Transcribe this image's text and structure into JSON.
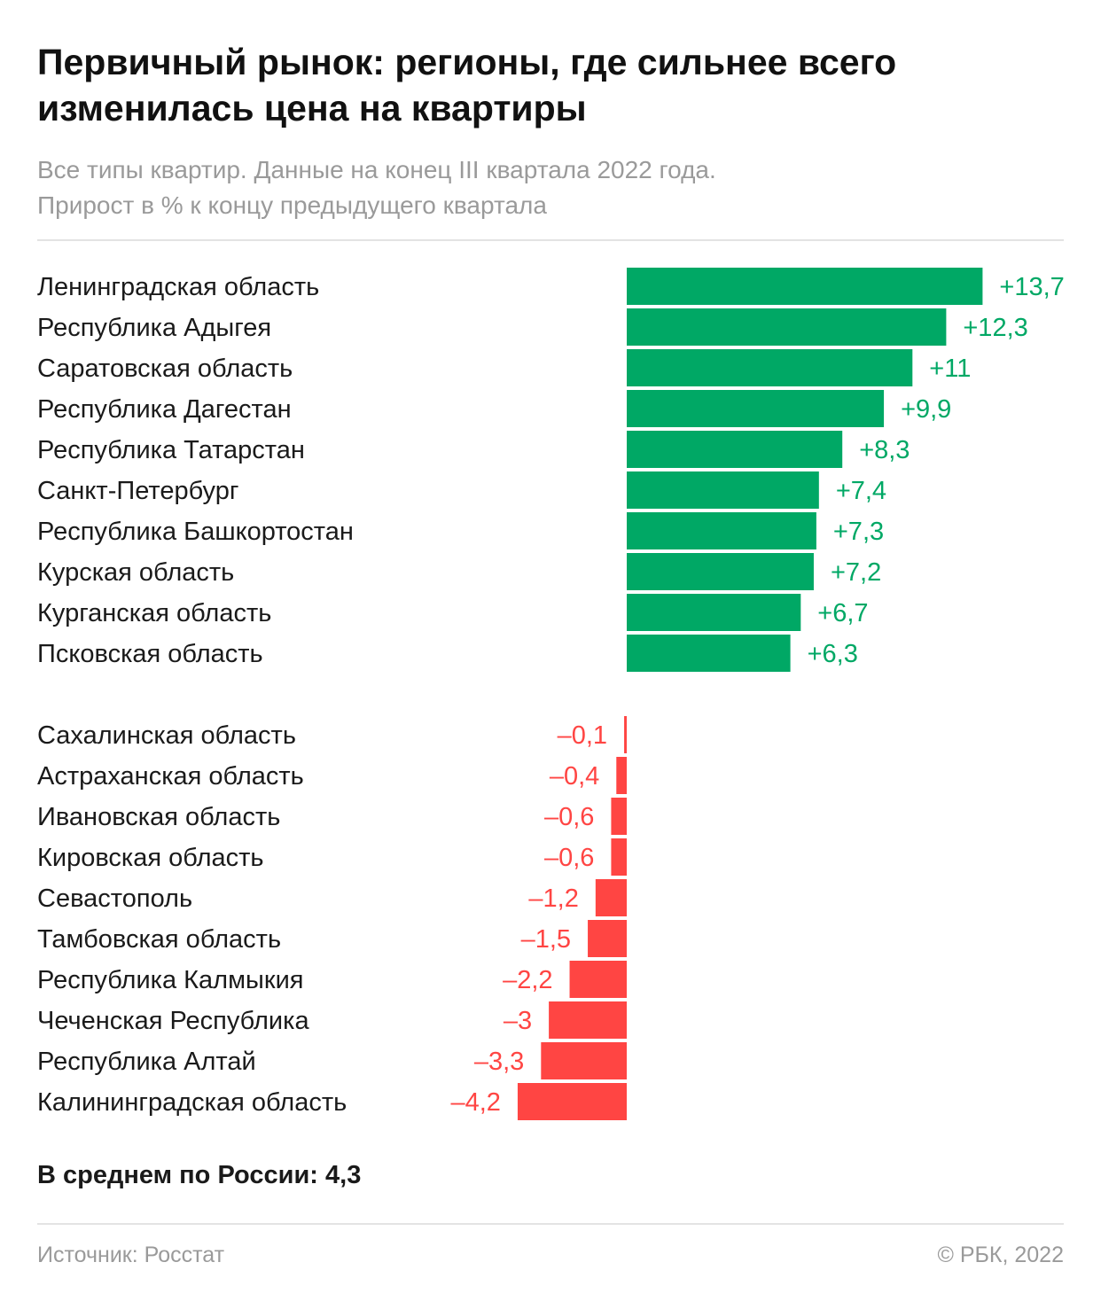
{
  "header": {
    "title": "Первичный рынок: регионы, где сильнее всего изменилась цена на квартиры",
    "subtitle_line1": "Все типы квартир. Данные на конец III квартала 2022 года.",
    "subtitle_line2": "Прирост в % к концу предыдущего квартала"
  },
  "chart_data": {
    "type": "bar",
    "orientation": "horizontal",
    "title": "Первичный рынок: регионы, где сильнее всего изменилась цена на квартиры",
    "subtitle": "Все типы квартир. Данные на конец III квартала 2022 года. Прирост в % к концу предыдущего квартала",
    "colors": {
      "positive": "#00a865",
      "negative": "#ff4543"
    },
    "groups": [
      {
        "categories": [
          "Ленинградская область",
          "Республика Адыгея",
          "Саратовская область",
          "Республика Дагестан",
          "Республика Татарстан",
          "Санкт-Петербург",
          "Республика Башкортостан",
          "Курская область",
          "Курганская область",
          "Псковская область"
        ],
        "values": [
          13.7,
          12.3,
          11,
          9.9,
          8.3,
          7.4,
          7.3,
          7.2,
          6.7,
          6.3
        ],
        "labels": [
          "+13,7",
          "+12,3",
          "+11",
          "+9,9",
          "+8,3",
          "+7,4",
          "+7,3",
          "+7,2",
          "+6,7",
          "+6,3"
        ]
      },
      {
        "categories": [
          "Сахалинская область",
          "Астраханская область",
          "Ивановская область",
          "Кировская область",
          "Севастополь",
          "Тамбовская область",
          "Республика Калмыкия",
          "Чеченская Республика",
          "Республика Алтай",
          "Калининградская область"
        ],
        "values": [
          -0.1,
          -0.4,
          -0.6,
          -0.6,
          -1.2,
          -1.5,
          -2.2,
          -3,
          -3.3,
          -4.2
        ],
        "labels": [
          "–0,1",
          "–0,4",
          "–0,6",
          "–0,6",
          "–1,2",
          "–1,5",
          "–2,2",
          "–3",
          "–3,3",
          "–4,2"
        ]
      }
    ]
  },
  "summary": {
    "average": "В среднем по России: 4,3"
  },
  "footer": {
    "source": "Источник: Росстат",
    "copyright": "© РБК, 2022"
  }
}
